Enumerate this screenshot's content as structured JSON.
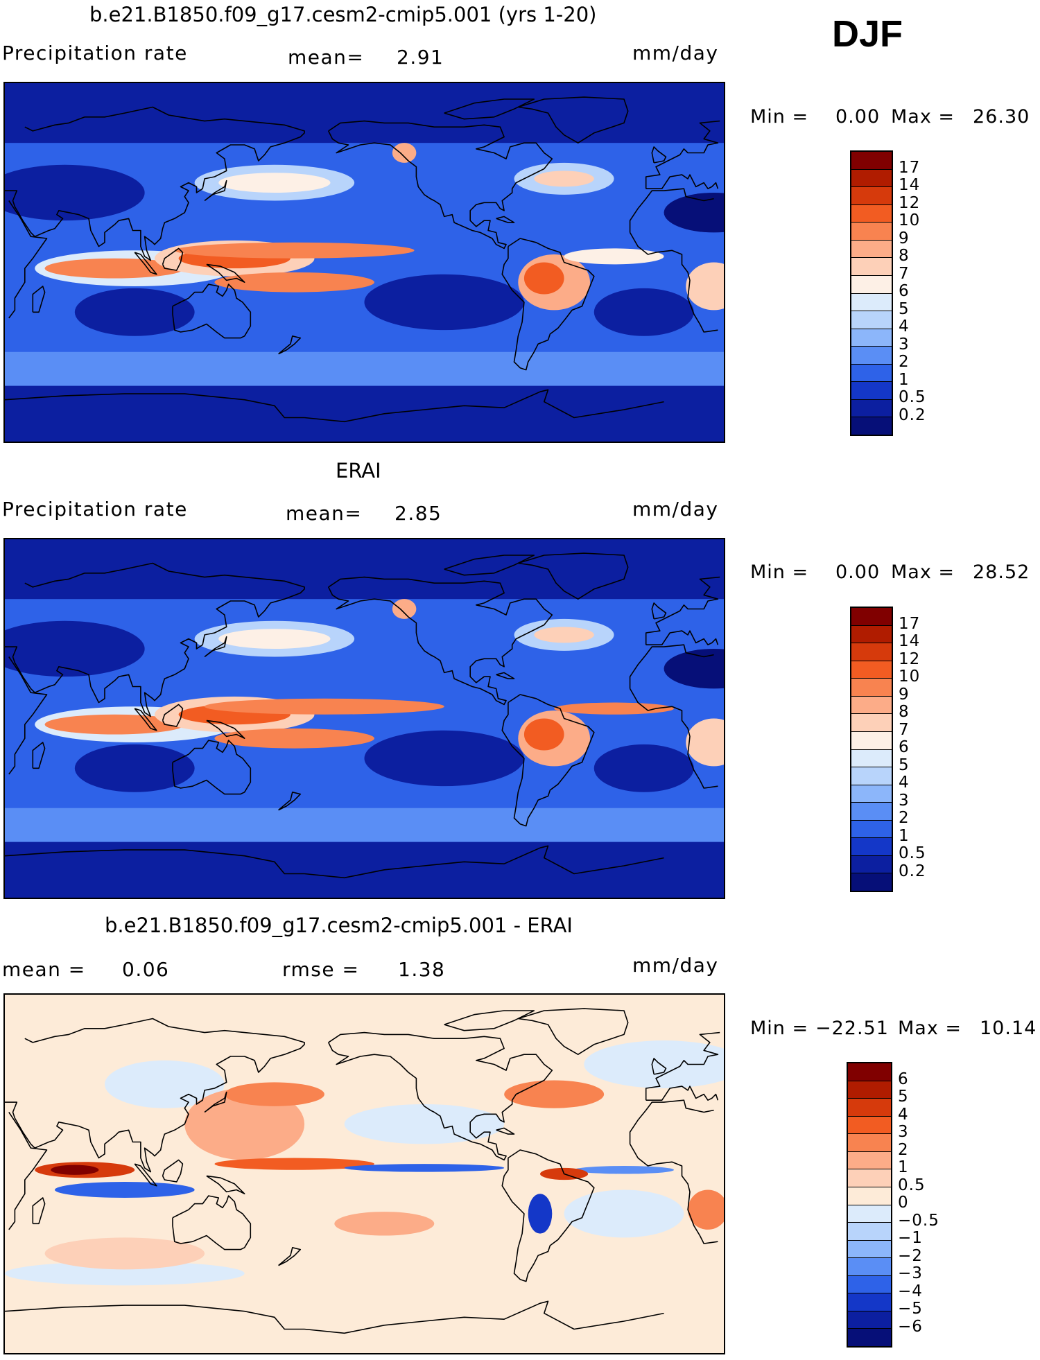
{
  "season": "DJF",
  "panels": [
    {
      "title": "b.e21.B1850.f09_g17.cesm2-cmip5.001 (yrs 1-20)",
      "left_label": "Precipitation rate",
      "mid_label": "mean=",
      "mid_value": "2.91",
      "units": "mm/day",
      "min_label": "Min =",
      "min_value": "0.00",
      "max_label": "Max =",
      "max_value": "26.30",
      "palette": "abs",
      "colorbar_labels": [
        "17",
        "14",
        "12",
        "10",
        "9",
        "8",
        "7",
        "6",
        "5",
        "4",
        "3",
        "2",
        "1",
        "0.5",
        "0.2"
      ]
    },
    {
      "title": "ERAI",
      "left_label": "Precipitation rate",
      "mid_label": "mean=",
      "mid_value": "2.85",
      "units": "mm/day",
      "min_label": "Min =",
      "min_value": "0.00",
      "max_label": "Max =",
      "max_value": "28.52",
      "palette": "abs",
      "colorbar_labels": [
        "17",
        "14",
        "12",
        "10",
        "9",
        "8",
        "7",
        "6",
        "5",
        "4",
        "3",
        "2",
        "1",
        "0.5",
        "0.2"
      ]
    },
    {
      "title": "b.e21.B1850.f09_g17.cesm2-cmip5.001 - ERAI",
      "left_label": "mean =",
      "left_value": "0.06",
      "mid_label": "rmse =",
      "mid_value": "1.38",
      "units": "mm/day",
      "min_label": "Min =",
      "min_value": "−22.51",
      "max_label": "Max =",
      "max_value": "10.14",
      "palette": "diff",
      "colorbar_labels": [
        "6",
        "5",
        "4",
        "3",
        "2",
        "1",
        "0.5",
        "0",
        "−0.5",
        "−1",
        "−2",
        "−3",
        "−4",
        "−5",
        "−6"
      ]
    }
  ],
  "palettes": {
    "abs": [
      "#800000",
      "#b01c00",
      "#d63a0c",
      "#f25c22",
      "#f88350",
      "#fcac88",
      "#fdd0b8",
      "#fdf0e6",
      "#dcebfb",
      "#b8d4fb",
      "#8cb6fa",
      "#5a8ef5",
      "#2e62e8",
      "#1437c8",
      "#0c1fa0",
      "#060f78"
    ],
    "diff": [
      "#800000",
      "#b01c00",
      "#d63a0c",
      "#f25c22",
      "#f88350",
      "#fcac88",
      "#fdd0b8",
      "#fdebd8",
      "#dcebfb",
      "#b8d4fb",
      "#8cb6fa",
      "#5a8ef5",
      "#2e62e8",
      "#1437c8",
      "#0c1fa0",
      "#060f78"
    ]
  },
  "chart_data": [
    {
      "type": "heatmap",
      "title": "b.e21.B1850.f09_g17.cesm2-cmip5.001 (yrs 1-20)",
      "variable": "Precipitation rate",
      "units": "mm/day",
      "mean": 2.91,
      "min": 0.0,
      "max": 26.3,
      "contour_levels": [
        0.2,
        0.5,
        1,
        2,
        3,
        4,
        5,
        6,
        7,
        8,
        9,
        10,
        12,
        14,
        17
      ]
    },
    {
      "type": "heatmap",
      "title": "ERAI",
      "variable": "Precipitation rate",
      "units": "mm/day",
      "mean": 2.85,
      "min": 0.0,
      "max": 28.52,
      "contour_levels": [
        0.2,
        0.5,
        1,
        2,
        3,
        4,
        5,
        6,
        7,
        8,
        9,
        10,
        12,
        14,
        17
      ]
    },
    {
      "type": "heatmap",
      "title": "b.e21.B1850.f09_g17.cesm2-cmip5.001 - ERAI",
      "units": "mm/day",
      "mean": 0.06,
      "rmse": 1.38,
      "min": -22.51,
      "max": 10.14,
      "contour_levels": [
        -6,
        -5,
        -4,
        -3,
        -2,
        -1,
        -0.5,
        0,
        0.5,
        1,
        2,
        3,
        4,
        5,
        6
      ]
    }
  ]
}
